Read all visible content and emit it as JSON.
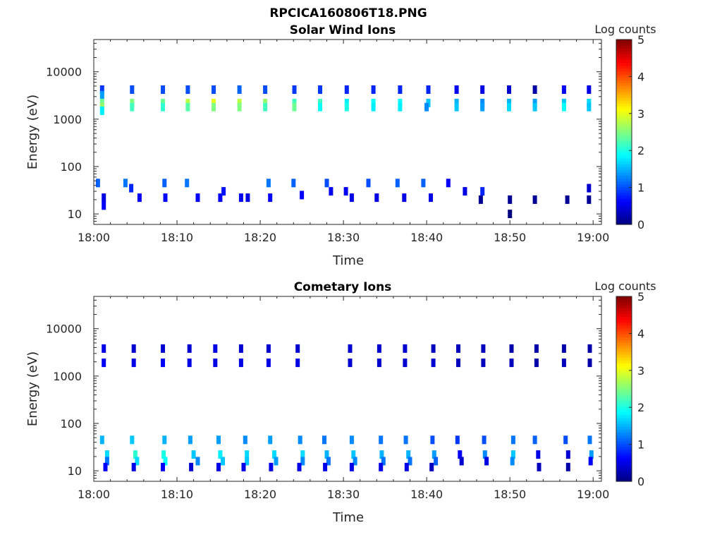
{
  "figure": {
    "title": "RPCICA160806T18.PNG"
  },
  "chart_data": [
    {
      "type": "heatmap",
      "title": "Solar Wind Ions",
      "xlabel": "Time",
      "ylabel": "Energy (eV)",
      "x_ticks": [
        "18:00",
        "18:10",
        "18:20",
        "18:30",
        "18:40",
        "18:50",
        "19:00"
      ],
      "y_ticks": [
        "10",
        "100",
        "1000",
        "10000"
      ],
      "y_scale": "log",
      "ylim": [
        6,
        48000
      ],
      "xlim_minutes": [
        0,
        61
      ],
      "colorbar": {
        "label": "Log counts",
        "min": 0,
        "max": 5,
        "ticks": [
          "0",
          "1",
          "2",
          "3",
          "4",
          "5"
        ],
        "colormap": "jet"
      },
      "cells": [
        [
          1,
          4200,
          0.9
        ],
        [
          1,
          3200,
          1.4
        ],
        [
          1,
          2200,
          2.4
        ],
        [
          1,
          1800,
          2.6
        ],
        [
          1,
          1500,
          1.8
        ],
        [
          0.5,
          45,
          1.1
        ],
        [
          1.2,
          22,
          0.5
        ],
        [
          1.2,
          15,
          0.6
        ],
        [
          4.6,
          4200,
          1.0
        ],
        [
          4.6,
          2200,
          2.5
        ],
        [
          4.6,
          1800,
          2.2
        ],
        [
          3.8,
          45,
          1.2
        ],
        [
          4.5,
          35,
          0.8
        ],
        [
          5.5,
          22,
          0.6
        ],
        [
          8.3,
          4200,
          1.0
        ],
        [
          8.3,
          2200,
          2.4
        ],
        [
          8.3,
          1800,
          2.1
        ],
        [
          8.5,
          45,
          1.1
        ],
        [
          8.6,
          22,
          0.6
        ],
        [
          11.3,
          4200,
          1.0
        ],
        [
          11.3,
          2200,
          2.8
        ],
        [
          11.3,
          1800,
          2.3
        ],
        [
          11.2,
          45,
          1.2
        ],
        [
          12.5,
          22,
          0.6
        ],
        [
          14.4,
          4200,
          1.0
        ],
        [
          14.4,
          2200,
          3.0
        ],
        [
          14.4,
          1800,
          2.5
        ],
        [
          15.2,
          22,
          0.6
        ],
        [
          15.6,
          30,
          0.7
        ],
        [
          17.5,
          4200,
          1.1
        ],
        [
          17.5,
          2200,
          2.8
        ],
        [
          17.5,
          1800,
          2.5
        ],
        [
          17.7,
          22,
          0.6
        ],
        [
          18.5,
          22,
          0.5
        ],
        [
          20.6,
          4200,
          1.0
        ],
        [
          20.6,
          2200,
          2.6
        ],
        [
          20.6,
          1800,
          2.2
        ],
        [
          21.0,
          45,
          1.2
        ],
        [
          21.2,
          22,
          0.6
        ],
        [
          24.1,
          4200,
          0.9
        ],
        [
          24.1,
          2200,
          2.2
        ],
        [
          24.1,
          1800,
          2.4
        ],
        [
          24.0,
          45,
          1.1
        ],
        [
          25.0,
          25,
          0.6
        ],
        [
          27.2,
          4200,
          0.9
        ],
        [
          27.2,
          2200,
          2.2
        ],
        [
          27.2,
          1800,
          1.9
        ],
        [
          28.0,
          45,
          1.0
        ],
        [
          28.5,
          30,
          0.6
        ],
        [
          30.4,
          4200,
          0.8
        ],
        [
          30.4,
          2200,
          1.8
        ],
        [
          30.4,
          1800,
          2.0
        ],
        [
          30.3,
          30,
          0.6
        ],
        [
          31.0,
          22,
          0.5
        ],
        [
          33.6,
          4200,
          0.8
        ],
        [
          33.6,
          2200,
          1.9
        ],
        [
          33.6,
          1800,
          1.8
        ],
        [
          33.0,
          45,
          1.0
        ],
        [
          34.0,
          22,
          0.5
        ],
        [
          36.8,
          4200,
          0.8
        ],
        [
          36.8,
          2200,
          1.9
        ],
        [
          36.8,
          1800,
          1.8
        ],
        [
          36.5,
          45,
          1.1
        ],
        [
          37.3,
          22,
          0.5
        ],
        [
          40.2,
          4200,
          0.8
        ],
        [
          40.2,
          2200,
          1.6
        ],
        [
          40.0,
          1800,
          1.3
        ],
        [
          39.6,
          45,
          1.1
        ],
        [
          40.5,
          22,
          0.5
        ],
        [
          43.6,
          4200,
          0.6
        ],
        [
          43.6,
          2200,
          1.5
        ],
        [
          43.6,
          1800,
          1.6
        ],
        [
          42.6,
          45,
          0.6
        ],
        [
          44.6,
          30,
          0.5
        ],
        [
          46.7,
          4200,
          0.5
        ],
        [
          46.7,
          2200,
          1.3
        ],
        [
          46.7,
          1800,
          1.4
        ],
        [
          46.7,
          30,
          0.8
        ],
        [
          46.5,
          20,
          0.1
        ],
        [
          49.9,
          4200,
          0.4
        ],
        [
          49.9,
          2200,
          1.5
        ],
        [
          49.9,
          1800,
          1.7
        ],
        [
          50.0,
          20,
          0.1
        ],
        [
          50.0,
          10,
          0.0
        ],
        [
          53.0,
          4200,
          0.2
        ],
        [
          53.0,
          2200,
          1.4
        ],
        [
          53.0,
          1800,
          1.6
        ],
        [
          53.0,
          20,
          0.1
        ],
        [
          56.5,
          4200,
          0.6
        ],
        [
          56.5,
          2200,
          1.6
        ],
        [
          56.5,
          1800,
          1.9
        ],
        [
          56.9,
          20,
          0.1
        ],
        [
          59.5,
          4200,
          0.5
        ],
        [
          59.5,
          2200,
          1.7
        ],
        [
          59.5,
          1800,
          1.6
        ],
        [
          59.5,
          35,
          0.4
        ],
        [
          59.5,
          20,
          0.1
        ]
      ]
    },
    {
      "type": "heatmap",
      "title": "Cometary Ions",
      "xlabel": "Time",
      "ylabel": "Energy (eV)",
      "x_ticks": [
        "18:00",
        "18:10",
        "18:20",
        "18:30",
        "18:40",
        "18:50",
        "19:00"
      ],
      "y_ticks": [
        "10",
        "100",
        "1000",
        "10000"
      ],
      "y_scale": "log",
      "ylim": [
        6,
        48000
      ],
      "xlim_minutes": [
        0,
        61
      ],
      "colorbar": {
        "label": "Log counts",
        "min": 0,
        "max": 5,
        "ticks": [
          "0",
          "1",
          "2",
          "3",
          "4",
          "5"
        ],
        "colormap": "jet"
      },
      "cells": [
        [
          1.2,
          3800,
          0.5
        ],
        [
          1.2,
          1900,
          0.6
        ],
        [
          1.0,
          45,
          1.5
        ],
        [
          1.6,
          22,
          1.7
        ],
        [
          1.6,
          16,
          1.2
        ],
        [
          1.4,
          12,
          0.6
        ],
        [
          4.8,
          3800,
          0.4
        ],
        [
          4.8,
          1900,
          0.5
        ],
        [
          4.6,
          45,
          1.6
        ],
        [
          5.0,
          22,
          2.1
        ],
        [
          5.2,
          16,
          1.7
        ],
        [
          4.8,
          12,
          0.5
        ],
        [
          8.3,
          3800,
          0.4
        ],
        [
          8.3,
          1900,
          0.6
        ],
        [
          8.5,
          45,
          1.5
        ],
        [
          8.4,
          22,
          2.0
        ],
        [
          8.6,
          16,
          1.9
        ],
        [
          8.3,
          12,
          0.6
        ],
        [
          11.5,
          3800,
          0.4
        ],
        [
          11.5,
          1900,
          0.5
        ],
        [
          11.6,
          45,
          1.4
        ],
        [
          12.0,
          22,
          1.6
        ],
        [
          12.5,
          16,
          1.3
        ],
        [
          11.7,
          12,
          0.4
        ],
        [
          14.6,
          3800,
          0.5
        ],
        [
          14.6,
          1900,
          0.5
        ],
        [
          15.0,
          45,
          1.4
        ],
        [
          15.2,
          22,
          1.8
        ],
        [
          15.5,
          16,
          1.6
        ],
        [
          15.0,
          12,
          0.5
        ],
        [
          17.7,
          3800,
          0.4
        ],
        [
          17.7,
          1900,
          0.5
        ],
        [
          18.2,
          45,
          1.3
        ],
        [
          18.4,
          22,
          1.7
        ],
        [
          18.4,
          16,
          1.6
        ],
        [
          18.0,
          12,
          0.5
        ],
        [
          21.0,
          3800,
          0.4
        ],
        [
          21.0,
          1900,
          0.5
        ],
        [
          21.2,
          45,
          1.4
        ],
        [
          21.7,
          22,
          1.7
        ],
        [
          21.9,
          16,
          1.4
        ],
        [
          21.3,
          12,
          0.5
        ],
        [
          24.5,
          3800,
          0.4
        ],
        [
          24.5,
          1900,
          0.5
        ],
        [
          24.8,
          45,
          1.3
        ],
        [
          25.1,
          22,
          1.7
        ],
        [
          25.1,
          16,
          1.3
        ],
        [
          24.7,
          12,
          0.5
        ],
        [
          27.7,
          45,
          1.2
        ],
        [
          28.0,
          22,
          1.5
        ],
        [
          28.2,
          16,
          1.2
        ],
        [
          27.8,
          12,
          0.5
        ],
        [
          30.8,
          3800,
          0.4
        ],
        [
          30.8,
          1900,
          0.4
        ],
        [
          31.0,
          45,
          1.3
        ],
        [
          31.2,
          22,
          1.6
        ],
        [
          31.4,
          16,
          1.3
        ],
        [
          31.0,
          12,
          0.5
        ],
        [
          34.3,
          3800,
          0.4
        ],
        [
          34.3,
          1900,
          0.4
        ],
        [
          34.5,
          45,
          1.2
        ],
        [
          34.6,
          22,
          1.5
        ],
        [
          34.8,
          16,
          1.2
        ],
        [
          34.5,
          12,
          0.5
        ],
        [
          37.4,
          3800,
          0.4
        ],
        [
          37.4,
          1900,
          0.4
        ],
        [
          37.5,
          45,
          1.2
        ],
        [
          37.8,
          22,
          1.5
        ],
        [
          38.0,
          16,
          1.2
        ],
        [
          37.6,
          12,
          0.5
        ],
        [
          40.8,
          3800,
          0.3
        ],
        [
          40.8,
          1900,
          0.4
        ],
        [
          40.7,
          45,
          1.0
        ],
        [
          40.9,
          22,
          1.4
        ],
        [
          41.1,
          16,
          1.1
        ],
        [
          40.6,
          12,
          0.3
        ],
        [
          43.8,
          3800,
          0.3
        ],
        [
          43.8,
          1900,
          0.3
        ],
        [
          43.7,
          45,
          0.9
        ],
        [
          44.0,
          22,
          0.6
        ],
        [
          44.2,
          16,
          0.4
        ],
        [
          46.8,
          3800,
          0.3
        ],
        [
          46.8,
          1900,
          0.3
        ],
        [
          46.9,
          45,
          1.0
        ],
        [
          47.0,
          22,
          1.3
        ],
        [
          47.2,
          16,
          0.5
        ],
        [
          50.2,
          3800,
          0.2
        ],
        [
          50.2,
          1900,
          0.3
        ],
        [
          50.4,
          45,
          1.2
        ],
        [
          50.4,
          22,
          1.6
        ],
        [
          50.3,
          16,
          1.3
        ],
        [
          53.2,
          3800,
          0.2
        ],
        [
          53.2,
          1900,
          0.2
        ],
        [
          53.0,
          45,
          1.1
        ],
        [
          53.4,
          22,
          0.5
        ],
        [
          53.5,
          12,
          0.3
        ],
        [
          56.5,
          3800,
          0.2
        ],
        [
          56.5,
          1900,
          0.3
        ],
        [
          56.7,
          45,
          1.0
        ],
        [
          57.0,
          22,
          0.4
        ],
        [
          57.0,
          12,
          0.2
        ],
        [
          59.6,
          3800,
          0.2
        ],
        [
          59.6,
          1900,
          0.2
        ],
        [
          59.6,
          45,
          1.2
        ],
        [
          59.8,
          22,
          1.4
        ],
        [
          59.7,
          16,
          0.6
        ]
      ]
    }
  ]
}
